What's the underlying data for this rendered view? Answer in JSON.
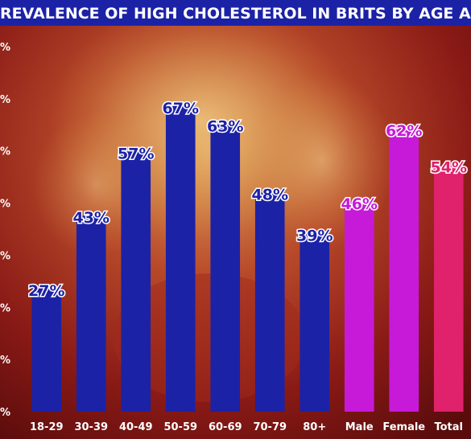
{
  "chart_data": {
    "type": "bar",
    "title": "REVALENCE OF HIGH CHOLESTEROL IN BRITS BY AGE AND SE",
    "xlabel": "",
    "ylabel": "",
    "ylim": [
      0,
      80
    ],
    "y_ticks": [
      "%",
      "%",
      "%",
      "%",
      "%",
      "%",
      "%",
      "%"
    ],
    "grid": false,
    "categories": [
      "18-29",
      "30-39",
      "40-49",
      "50-59",
      "60-69",
      "70-79",
      "80+",
      "Male",
      "Female",
      "Total"
    ],
    "values": [
      27,
      43,
      57,
      67,
      63,
      48,
      39,
      46,
      62,
      54
    ],
    "data_labels": [
      "27%",
      "43%",
      "57%",
      "67%",
      "63%",
      "48%",
      "39%",
      "46%",
      "62%",
      "54%"
    ],
    "colors": {
      "age": "#1c22a6",
      "sex": "#c61ad8",
      "total": "#e0216b",
      "age_label": "#1c22a6",
      "sex_label": "#c61ad8",
      "total_label": "#e0216b",
      "title_bar": "#1c22a6",
      "background": "#7a1414"
    },
    "bar_groups": [
      "age",
      "age",
      "age",
      "age",
      "age",
      "age",
      "age",
      "sex",
      "sex",
      "total"
    ]
  }
}
